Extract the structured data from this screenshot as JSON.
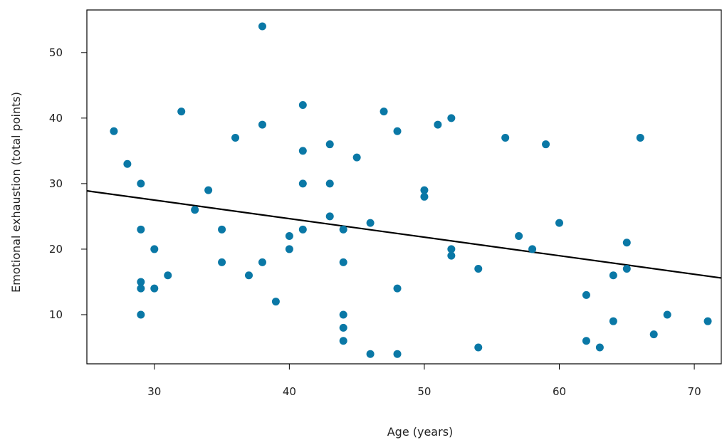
{
  "chart_data": {
    "type": "scatter",
    "title": "",
    "xlabel": "Age (years)",
    "ylabel": "Emotional exhaustion (total points)",
    "xlim": [
      25,
      72
    ],
    "ylim": [
      2.5,
      56.5
    ],
    "xticks": [
      30,
      40,
      50,
      60,
      70
    ],
    "yticks": [
      10,
      20,
      30,
      40,
      50
    ],
    "xtick_labels": [
      "30",
      "40",
      "50",
      "60",
      "70"
    ],
    "ytick_labels": [
      "10",
      "20",
      "30",
      "40",
      "50"
    ],
    "grid": false,
    "legend": "none",
    "marker_color": "#0a78a6",
    "line_color": "#000000",
    "points": [
      [
        27,
        38
      ],
      [
        28,
        33
      ],
      [
        29,
        30
      ],
      [
        29,
        23
      ],
      [
        29,
        15
      ],
      [
        29,
        14
      ],
      [
        29,
        10
      ],
      [
        30,
        20
      ],
      [
        30,
        14
      ],
      [
        31,
        16
      ],
      [
        32,
        41
      ],
      [
        33,
        26
      ],
      [
        34,
        29
      ],
      [
        35,
        23
      ],
      [
        35,
        18
      ],
      [
        36,
        37
      ],
      [
        37,
        16
      ],
      [
        38,
        54
      ],
      [
        38,
        39
      ],
      [
        38,
        18
      ],
      [
        39,
        12
      ],
      [
        40,
        22
      ],
      [
        40,
        20
      ],
      [
        41,
        42
      ],
      [
        41,
        35
      ],
      [
        41,
        30
      ],
      [
        41,
        23
      ],
      [
        43,
        36
      ],
      [
        43,
        30
      ],
      [
        43,
        25
      ],
      [
        44,
        23
      ],
      [
        44,
        18
      ],
      [
        44,
        10
      ],
      [
        44,
        8
      ],
      [
        44,
        6
      ],
      [
        45,
        34
      ],
      [
        46,
        24
      ],
      [
        46,
        4
      ],
      [
        47,
        41
      ],
      [
        48,
        38
      ],
      [
        48,
        14
      ],
      [
        48,
        4
      ],
      [
        50,
        29
      ],
      [
        50,
        28
      ],
      [
        51,
        39
      ],
      [
        52,
        40
      ],
      [
        52,
        20
      ],
      [
        52,
        19
      ],
      [
        54,
        17
      ],
      [
        54,
        5
      ],
      [
        56,
        37
      ],
      [
        57,
        22
      ],
      [
        58,
        20
      ],
      [
        59,
        36
      ],
      [
        60,
        24
      ],
      [
        62,
        13
      ],
      [
        62,
        6
      ],
      [
        63,
        5
      ],
      [
        64,
        16
      ],
      [
        64,
        9
      ],
      [
        65,
        21
      ],
      [
        65,
        17
      ],
      [
        66,
        37
      ],
      [
        67,
        7
      ],
      [
        68,
        10
      ],
      [
        71,
        9
      ]
    ],
    "trend_line": {
      "x": [
        25,
        72
      ],
      "y": [
        28.9,
        15.6
      ]
    }
  }
}
